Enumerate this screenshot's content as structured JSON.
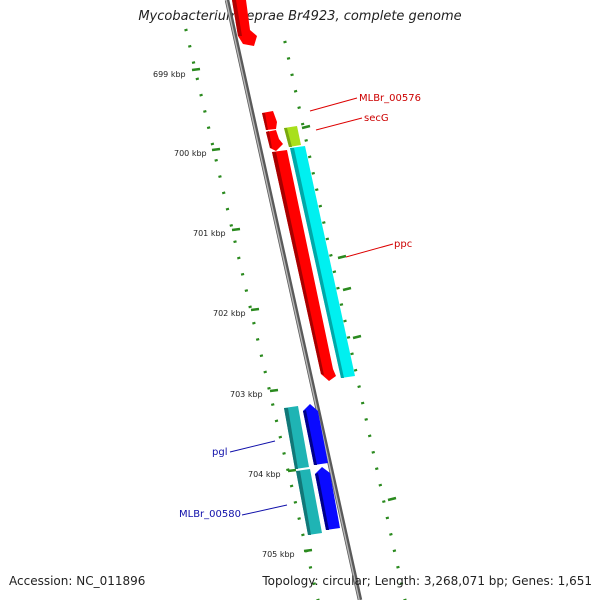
{
  "title": "Mycobacterium leprae Br4923, complete genome",
  "accession": "Accession: NC_011896",
  "summary": "Topology: circular; Length: 3,268,071 bp; Genes: 1,651",
  "colors": {
    "backbone": "#888888",
    "tick": "#2a8a1e",
    "forward_gene": "#ff0000",
    "reverse_gene": "#0000ff",
    "cds_cyan": "#00e5e5",
    "cds_teal": "#1fb4b4",
    "cds_yellowgreen": "#a8e01c",
    "label_red": "#cc0000",
    "label_blue": "#1010aa"
  },
  "ruler": {
    "unit": "kbp",
    "labels": [
      "699 kbp",
      "700 kbp",
      "701 kbp",
      "702 kbp",
      "703 kbp",
      "704 kbp",
      "705 kbp"
    ]
  },
  "gene_labels": [
    {
      "text": "MLBr_00576",
      "color": "#cc0000"
    },
    {
      "text": "secG",
      "color": "#cc0000"
    },
    {
      "text": "ppc",
      "color": "#cc0000"
    },
    {
      "text": "pgl",
      "color": "#1010aa"
    },
    {
      "text": "MLBr_00580",
      "color": "#1010aa"
    }
  ]
}
